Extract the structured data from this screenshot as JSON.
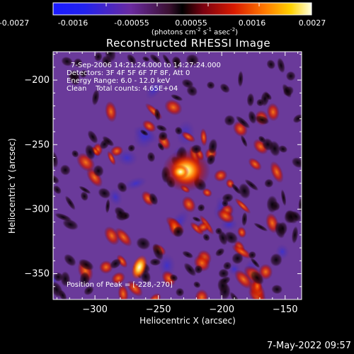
{
  "colorbar": {
    "ticks": [
      "-0.0027",
      "-0.0016",
      "-0.00055",
      "0.00055",
      "0.0016",
      "0.0027"
    ],
    "unit_prefix": "(photons cm",
    "unit_sup1": "-2",
    "unit_mid": " s",
    "unit_sup2": "-1",
    "unit_mid2": " asec",
    "unit_sup3": "-2",
    "unit_suffix": ")"
  },
  "chart_data": {
    "type": "heatmap",
    "title": "Reconstructed RHESSI Image",
    "xlabel": "Heliocentric X (arcsec)",
    "ylabel": "Heliocentric Y (arcsec)",
    "xlim": [
      -333,
      -137
    ],
    "ylim": [
      -370,
      -178
    ],
    "x_ticks": [
      -300,
      -250,
      -200,
      -150
    ],
    "y_ticks": [
      -200,
      -250,
      -300,
      -350
    ],
    "x_tick_labels": [
      "−300",
      "−250",
      "−200",
      "−150"
    ],
    "y_tick_labels": [
      "−200",
      "−250",
      "−300",
      "−350"
    ],
    "peak_position": [
      -228,
      -270
    ],
    "colorbar_range": [
      -0.0027,
      0.0027
    ],
    "colormap": "blue-purple-red-yellow-white",
    "annotations": {
      "time_range": "7-Sep-2006 14:21:24.000 to 14:27:24.000",
      "detectors": "Detectors: 3F 4F 5F 6F 7F 8F, Att 0",
      "energy": "Energy Range: 6.0 - 12.0 keV",
      "clean": "Clean    Total counts: 4.65E+04",
      "peak": "Position of Peak = [-228,-270]"
    }
  },
  "footer": "7-May-2022 09:57"
}
